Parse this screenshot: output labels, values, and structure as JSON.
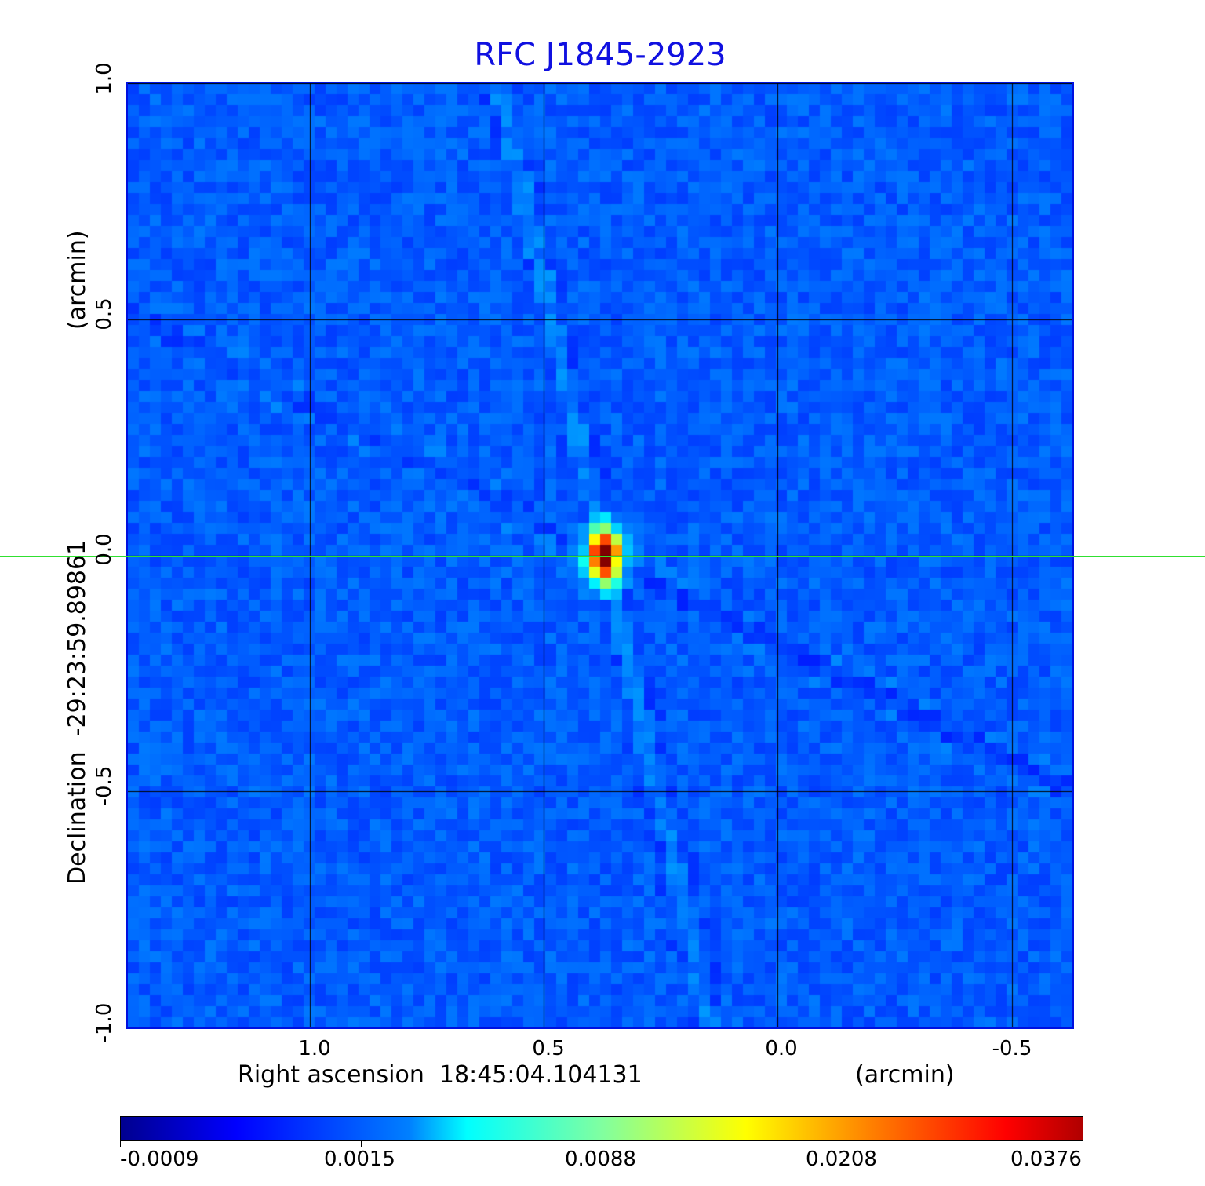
{
  "chart_data": {
    "type": "heatmap",
    "title": "RFC J1845-2923",
    "xlabel": "Right ascension  18:45:04.104131",
    "xunit": "(arcmin)",
    "ylabel": "Declination  -29:23:59.89861",
    "yunit": "(arcmin)",
    "xlim": [
      1.39,
      -0.63
    ],
    "ylim": [
      -1.0,
      1.0
    ],
    "xticks": [
      "1.0",
      "0.5",
      "0.0",
      "-0.5"
    ],
    "xtick_values": [
      1.0,
      0.5,
      0.0,
      -0.5
    ],
    "yticks": [
      "1.0",
      "0.5",
      "0.0",
      "-0.5",
      "-1.0"
    ],
    "ytick_values": [
      1.0,
      0.5,
      0.0,
      -0.5,
      -1.0
    ],
    "grid": true,
    "colormap": "jet",
    "colorbar": {
      "placement": "bottom",
      "ticks": [
        "-0.0009",
        "0.0015",
        "0.0088",
        "0.0208",
        "0.0376"
      ],
      "min": -0.0009,
      "max": 0.0376
    },
    "source_peak": {
      "x": 0.37,
      "y": 0.0,
      "value": 0.0376
    },
    "crosshair": {
      "x": 0.37,
      "y": 0.0,
      "color": "#30e030"
    },
    "title_color": "#1010e0"
  }
}
